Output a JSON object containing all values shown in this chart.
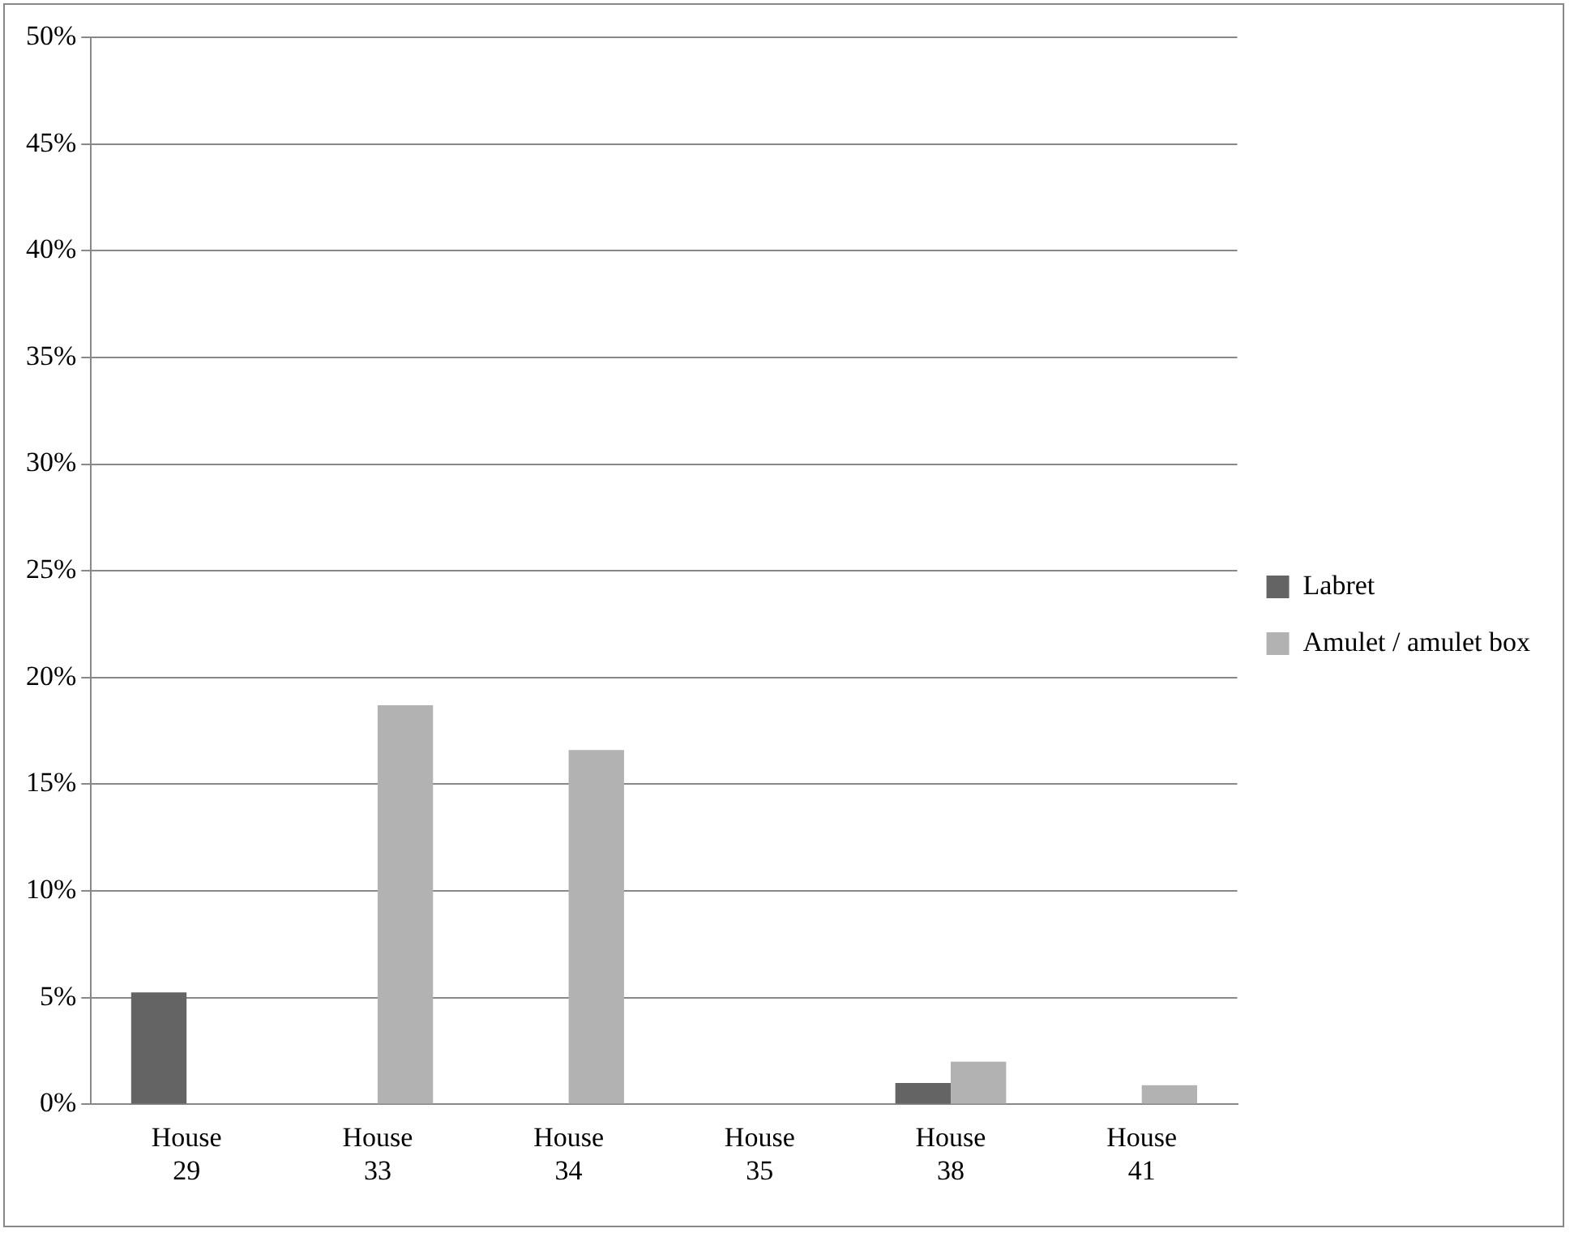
{
  "chart_data": {
    "type": "bar",
    "categories": [
      "House 29",
      "House 33",
      "House 34",
      "House 35",
      "House 38",
      "House 41"
    ],
    "series": [
      {
        "name": "Labret",
        "color": "#646464",
        "values": [
          5.25,
          0,
          0,
          0,
          1.0,
          0
        ]
      },
      {
        "name": "Amulet / amulet box",
        "color": "#b2b2b2",
        "values": [
          0,
          18.7,
          16.6,
          0,
          2.0,
          0.9
        ]
      }
    ],
    "ylim": [
      0,
      50
    ],
    "yticks": [
      {
        "value": 0,
        "label": "0%"
      },
      {
        "value": 5,
        "label": "5%"
      },
      {
        "value": 10,
        "label": "10%"
      },
      {
        "value": 15,
        "label": "15%"
      },
      {
        "value": 20,
        "label": "20%"
      },
      {
        "value": 25,
        "label": "25%"
      },
      {
        "value": 30,
        "label": "30%"
      },
      {
        "value": 35,
        "label": "35%"
      },
      {
        "value": 40,
        "label": "40%"
      },
      {
        "value": 45,
        "label": "45%"
      },
      {
        "value": 50,
        "label": "50%"
      }
    ],
    "grid": "y",
    "legend": "right"
  }
}
